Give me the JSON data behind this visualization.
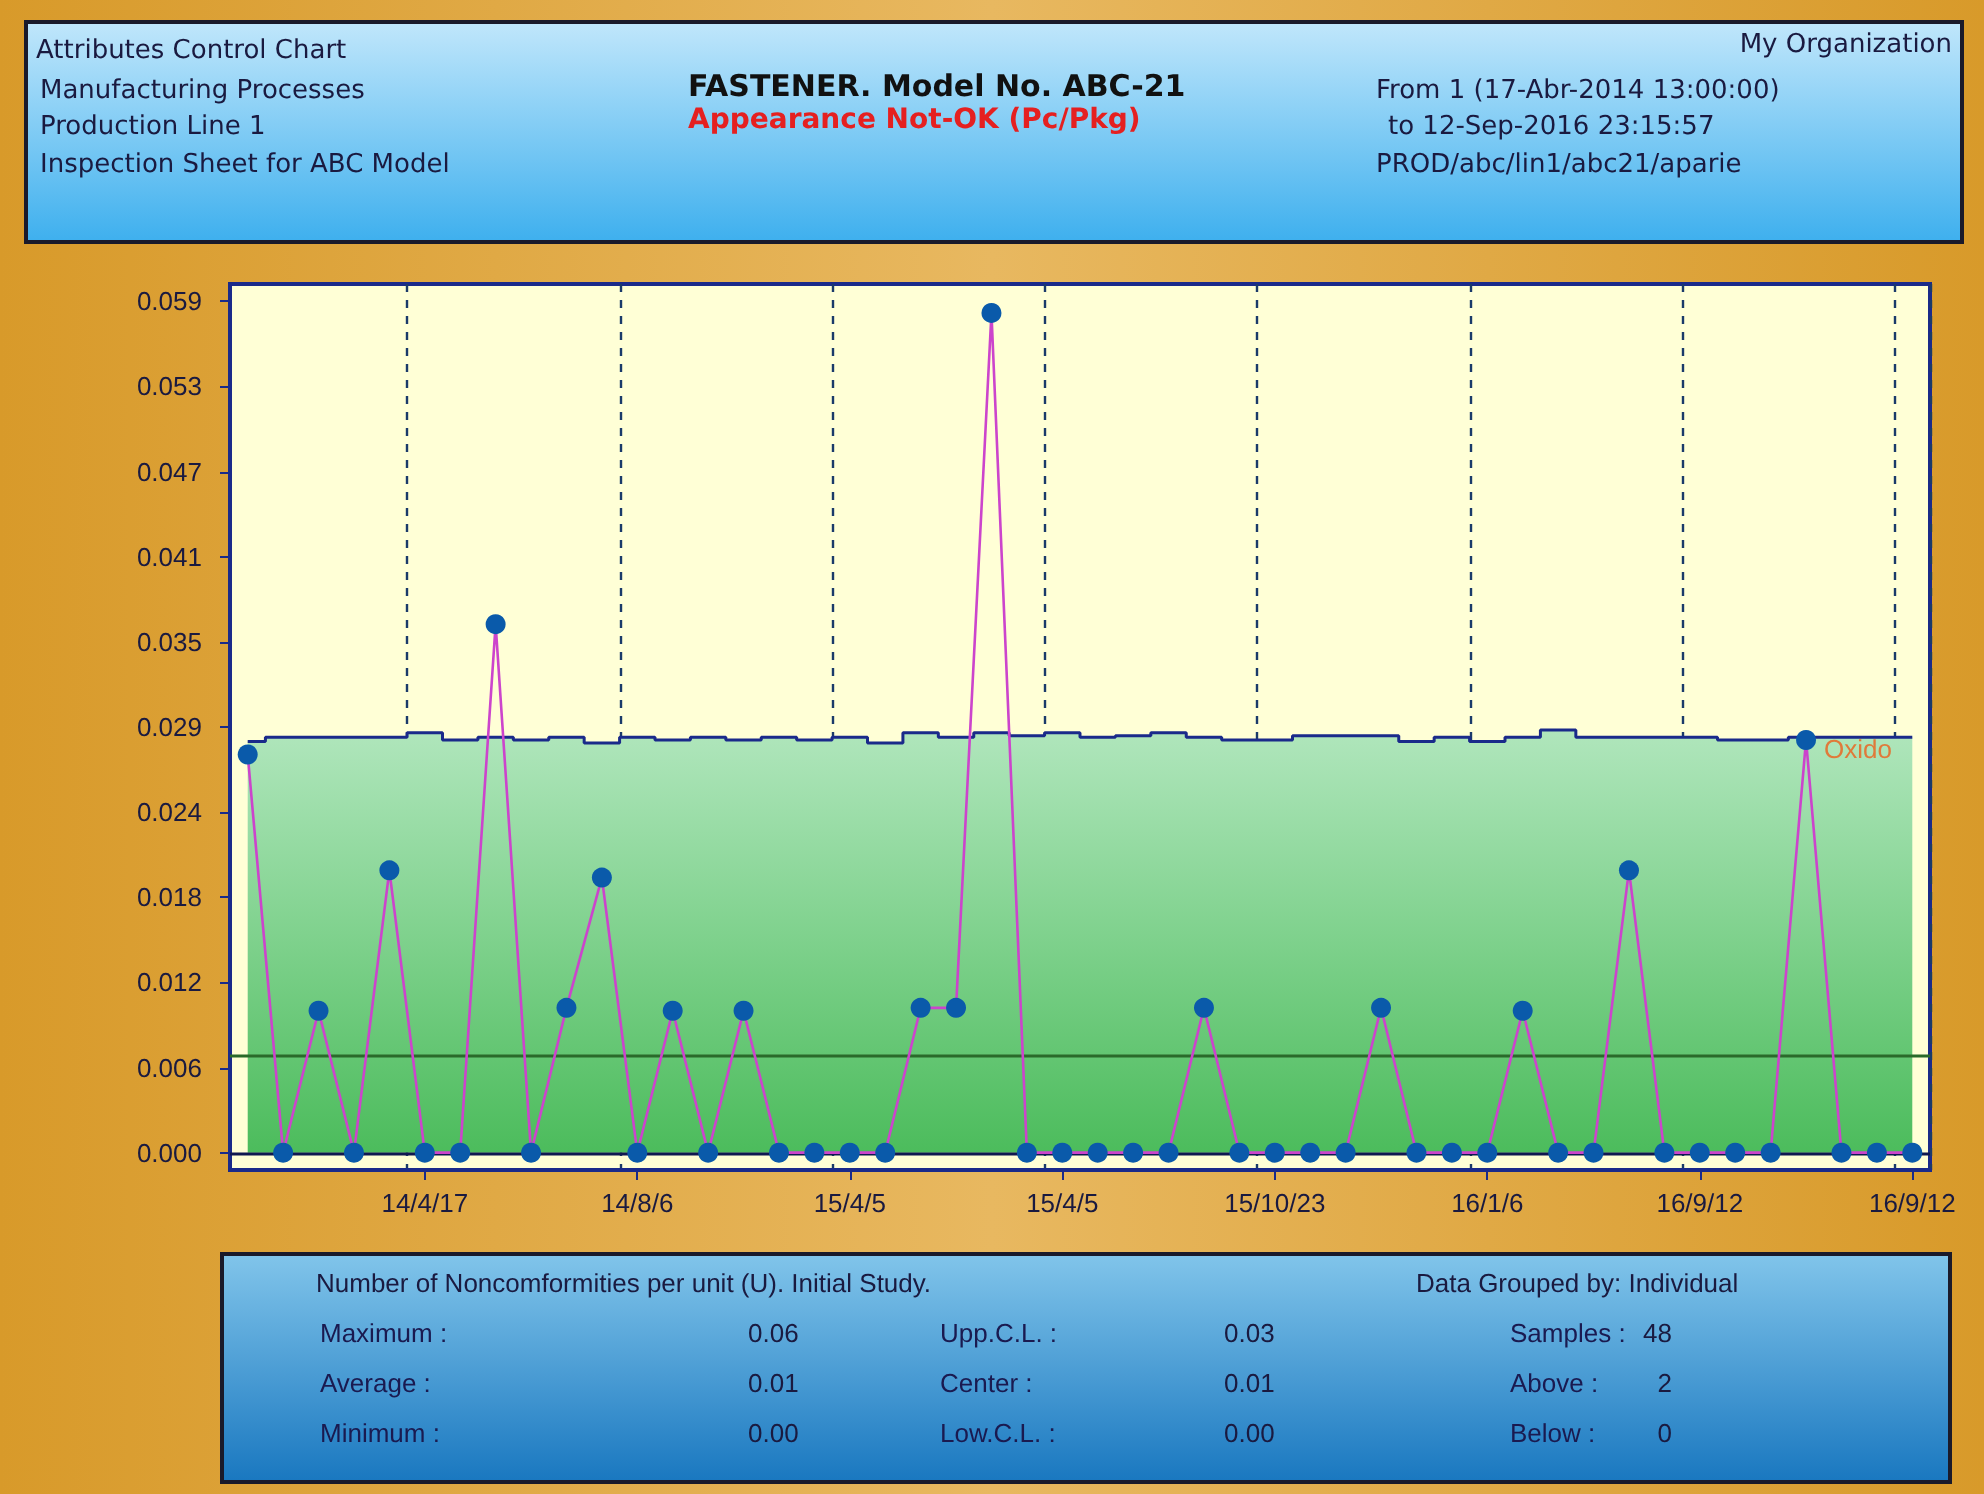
{
  "chart_data": {
    "type": "line",
    "title": "FASTENER. Model No. ABC-21",
    "subtitle": "Appearance Not-OK (Pc/Pkg)",
    "categories": [
      null,
      null,
      null,
      null,
      null,
      "14/4/17",
      null,
      null,
      null,
      null,
      null,
      "14/8/6",
      null,
      null,
      null,
      null,
      null,
      "15/4/5",
      null,
      null,
      null,
      null,
      null,
      "15/4/5",
      null,
      null,
      null,
      null,
      null,
      "15/10/23",
      null,
      null,
      null,
      null,
      null,
      "16/1/6",
      null,
      null,
      null,
      null,
      null,
      "16/9/12",
      null,
      null,
      null,
      null,
      null,
      "16/9/12"
    ],
    "series": [
      {
        "color": "#cc44cc",
        "marker": "circle",
        "values": [
          0.0275,
          0,
          0.0098,
          0,
          0.0195,
          0,
          0,
          0.0365,
          0,
          0.01,
          0.019,
          0,
          0.0098,
          0,
          0.0098,
          0,
          0,
          0,
          0,
          0.01,
          0.01,
          0.058,
          0,
          0,
          0,
          0,
          0,
          0.01,
          0,
          0,
          0,
          0,
          0.01,
          0,
          0,
          0,
          0.0098,
          0,
          0,
          0.0195,
          0,
          0,
          0,
          0,
          0.0285,
          0,
          0,
          0
        ]
      },
      {
        "type": "area",
        "color": "#1a2a8a",
        "values": [
          0.0284,
          0.0287,
          0.0287,
          0.0287,
          0.0287,
          0.029,
          0.0285,
          0.0287,
          0.0285,
          0.0287,
          0.0283,
          0.0287,
          0.0285,
          0.0287,
          0.0285,
          0.0287,
          0.0285,
          0.0287,
          0.0283,
          0.029,
          0.0287,
          0.029,
          0.0288,
          0.029,
          0.0287,
          0.0288,
          0.029,
          0.0287,
          0.0285,
          0.0285,
          0.0288,
          0.0288,
          0.0288,
          0.0284,
          0.0287,
          0.0284,
          0.0287,
          0.0292,
          0.0287,
          0.0287,
          0.0287,
          0.0287,
          0.0285,
          0.0285,
          0.0287,
          0.0287,
          0.0287,
          0.0287
        ]
      }
    ],
    "ylim": [
      -0.0012,
      0.06
    ],
    "yticks": [
      {
        "value": 0,
        "label": "0.000"
      },
      {
        "value": 0.00588,
        "label": "0.006"
      },
      {
        "value": 0.01176,
        "label": "0.012"
      },
      {
        "value": 0.01764,
        "label": "0.018"
      },
      {
        "value": 0.02352,
        "label": "0.024"
      },
      {
        "value": 0.0294,
        "label": "0.029"
      },
      {
        "value": 0.03528,
        "label": "0.035"
      },
      {
        "value": 0.04116,
        "label": "0.041"
      },
      {
        "value": 0.04704,
        "label": "0.047"
      },
      {
        "value": 0.05292,
        "label": "0.053"
      },
      {
        "value": 0.0588,
        "label": "0.059"
      }
    ],
    "ref_lines": [
      {
        "axis": "y",
        "value": 0.0067,
        "label": null,
        "color": "#2a6a2a"
      },
      {
        "axis": "y",
        "value": 0,
        "label": null,
        "color": "#101850"
      }
    ],
    "grid": "x",
    "annotations": [
      "Attributes Control Chart",
      "Manufacturing Processes",
      "Production Line 1",
      "Inspection Sheet for ABC Model",
      "My Organization",
      "From 1 (17-Abr-2014  13:00:00)",
      "to  12-Sep-2016  23:15:57",
      "PROD/abc/lin1/abc21/aparie",
      "Number of Noncomformities per unit (U). Initial Study.",
      "Data Grouped by: Individual",
      "Maximum :",
      "0.06",
      "Upp.C.L. :",
      "0.03",
      "Samples :",
      "48",
      "Average :",
      "0.01",
      "Center :",
      "0.01",
      "Above :",
      "2",
      "Minimum :",
      "0.00",
      "Low.C.L. :",
      "0.00",
      "Below :",
      "0",
      "Oxido"
    ]
  }
}
